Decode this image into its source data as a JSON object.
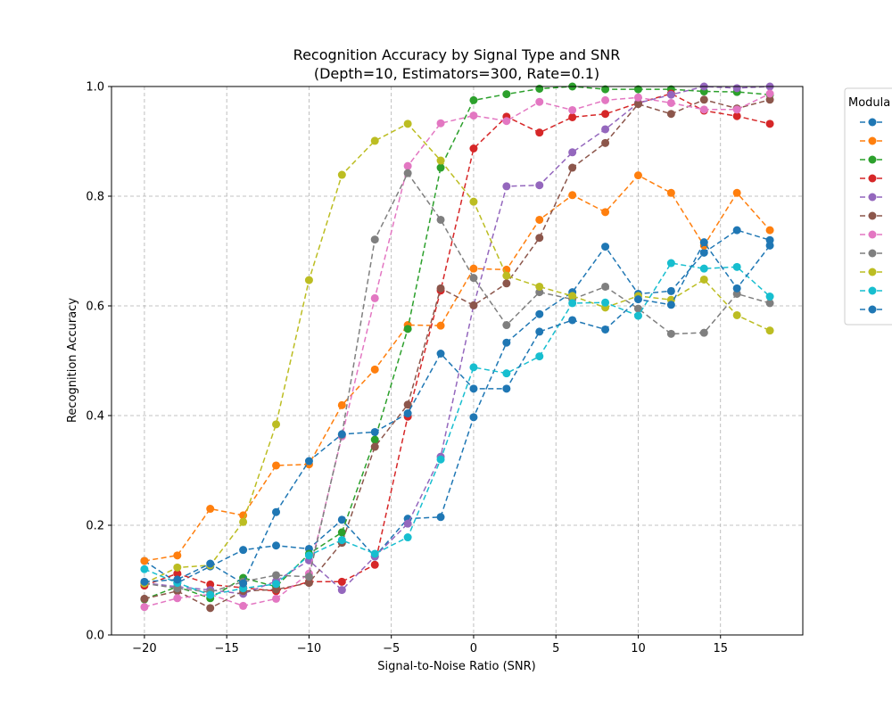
{
  "chart_data": {
    "type": "line",
    "title_line1": "Recognition Accuracy by Signal Type and SNR",
    "title_line2": "(Depth=10, Estimators=300, Rate=0.1)",
    "xlabel": "Signal-to-Noise Ratio (SNR)",
    "ylabel": "Recognition Accuracy",
    "xlim": [
      -22,
      20
    ],
    "ylim": [
      0.0,
      1.0
    ],
    "xticks": [
      -20,
      -15,
      -10,
      -5,
      0,
      5,
      10,
      15
    ],
    "xtick_labels": [
      "−20",
      "−15",
      "−10",
      "−5",
      "0",
      "5",
      "10",
      "15"
    ],
    "yticks": [
      0.0,
      0.2,
      0.4,
      0.6,
      0.8,
      1.0
    ],
    "ytick_labels": [
      "0.0",
      "0.2",
      "0.4",
      "0.6",
      "0.8",
      "1.0"
    ],
    "grid": true,
    "legend_title": "Modula",
    "legend_position": "outside-right-top",
    "x": [
      -20,
      -18,
      -16,
      -14,
      -12,
      -10,
      -8,
      -6,
      -4,
      -2,
      0,
      2,
      4,
      6,
      8,
      10,
      12,
      14,
      16,
      18
    ],
    "series": [
      {
        "name": "",
        "color": "#1f77b4",
        "values": [
          0.135,
          0.095,
          0.125,
          0.155,
          0.163,
          0.157,
          0.21,
          0.143,
          0.212,
          0.215,
          0.397,
          0.533,
          0.585,
          0.625,
          0.708,
          0.622,
          0.627,
          0.697,
          0.738,
          0.72
        ]
      },
      {
        "name": "",
        "color": "#ff7f0e",
        "values": [
          0.135,
          0.145,
          0.23,
          0.218,
          0.309,
          0.311,
          0.419,
          0.484,
          0.565,
          0.564,
          0.668,
          0.666,
          0.757,
          0.802,
          0.771,
          0.838,
          0.806,
          0.71,
          0.806,
          0.738
        ]
      },
      {
        "name": "",
        "color": "#2ca02c",
        "values": [
          0.065,
          0.088,
          0.067,
          0.104,
          0.088,
          0.148,
          0.187,
          0.356,
          0.558,
          0.852,
          0.975,
          0.986,
          0.996,
          1.0,
          0.995,
          0.995,
          0.995,
          0.991,
          0.99,
          0.985
        ]
      },
      {
        "name": "",
        "color": "#d62728",
        "values": [
          0.09,
          0.112,
          0.092,
          0.086,
          0.08,
          0.097,
          0.097,
          0.128,
          0.398,
          0.628,
          0.887,
          0.945,
          0.916,
          0.944,
          0.95,
          0.97,
          0.987,
          0.956,
          0.946,
          0.932
        ]
      },
      {
        "name": "",
        "color": "#9467bd",
        "values": [
          0.095,
          0.088,
          0.082,
          0.075,
          0.098,
          0.136,
          0.082,
          0.143,
          0.203,
          0.325,
          0.601,
          0.818,
          0.82,
          0.88,
          0.922,
          0.97,
          0.985,
          1.0,
          0.997,
          1.0
        ]
      },
      {
        "name": "",
        "color": "#8c564b",
        "values": [
          0.066,
          0.08,
          0.049,
          0.08,
          0.083,
          0.095,
          0.168,
          0.343,
          0.42,
          0.632,
          0.601,
          0.641,
          0.724,
          0.852,
          0.897,
          0.968,
          0.95,
          0.976,
          0.96,
          0.976
        ]
      },
      {
        "name": "",
        "color": "#e377c2",
        "values": [
          0.051,
          0.067,
          0.074,
          0.053,
          0.066,
          0.112,
          0.362,
          0.614,
          0.855,
          0.933,
          0.947,
          0.937,
          0.972,
          0.957,
          0.975,
          0.98,
          0.97,
          0.958,
          0.958,
          0.987
        ]
      },
      {
        "name": "",
        "color": "#7f7f7f",
        "values": [
          0.094,
          0.085,
          0.078,
          0.097,
          0.109,
          0.106,
          0.365,
          0.721,
          0.842,
          0.757,
          0.651,
          0.565,
          0.625,
          0.612,
          0.635,
          0.595,
          0.549,
          0.551,
          0.622,
          0.605
        ]
      },
      {
        "name": "",
        "color": "#bcbd22",
        "values": [
          0.094,
          0.123,
          0.127,
          0.206,
          0.384,
          0.647,
          0.839,
          0.901,
          0.932,
          0.865,
          0.79,
          0.655,
          0.635,
          0.618,
          0.597,
          0.618,
          0.611,
          0.648,
          0.583,
          0.555
        ]
      },
      {
        "name": "",
        "color": "#17becf",
        "values": [
          0.12,
          0.095,
          0.073,
          0.085,
          0.093,
          0.145,
          0.173,
          0.148,
          0.178,
          0.32,
          0.488,
          0.477,
          0.508,
          0.605,
          0.606,
          0.582,
          0.678,
          0.668,
          0.671,
          0.617
        ]
      },
      {
        "name": "",
        "color": "#1f77b4",
        "values": [
          0.097,
          0.101,
          0.13,
          0.094,
          0.224,
          0.317,
          0.366,
          0.37,
          0.404,
          0.513,
          0.449,
          0.449,
          0.553,
          0.574,
          0.557,
          0.612,
          0.602,
          0.716,
          0.632,
          0.71
        ]
      }
    ]
  }
}
